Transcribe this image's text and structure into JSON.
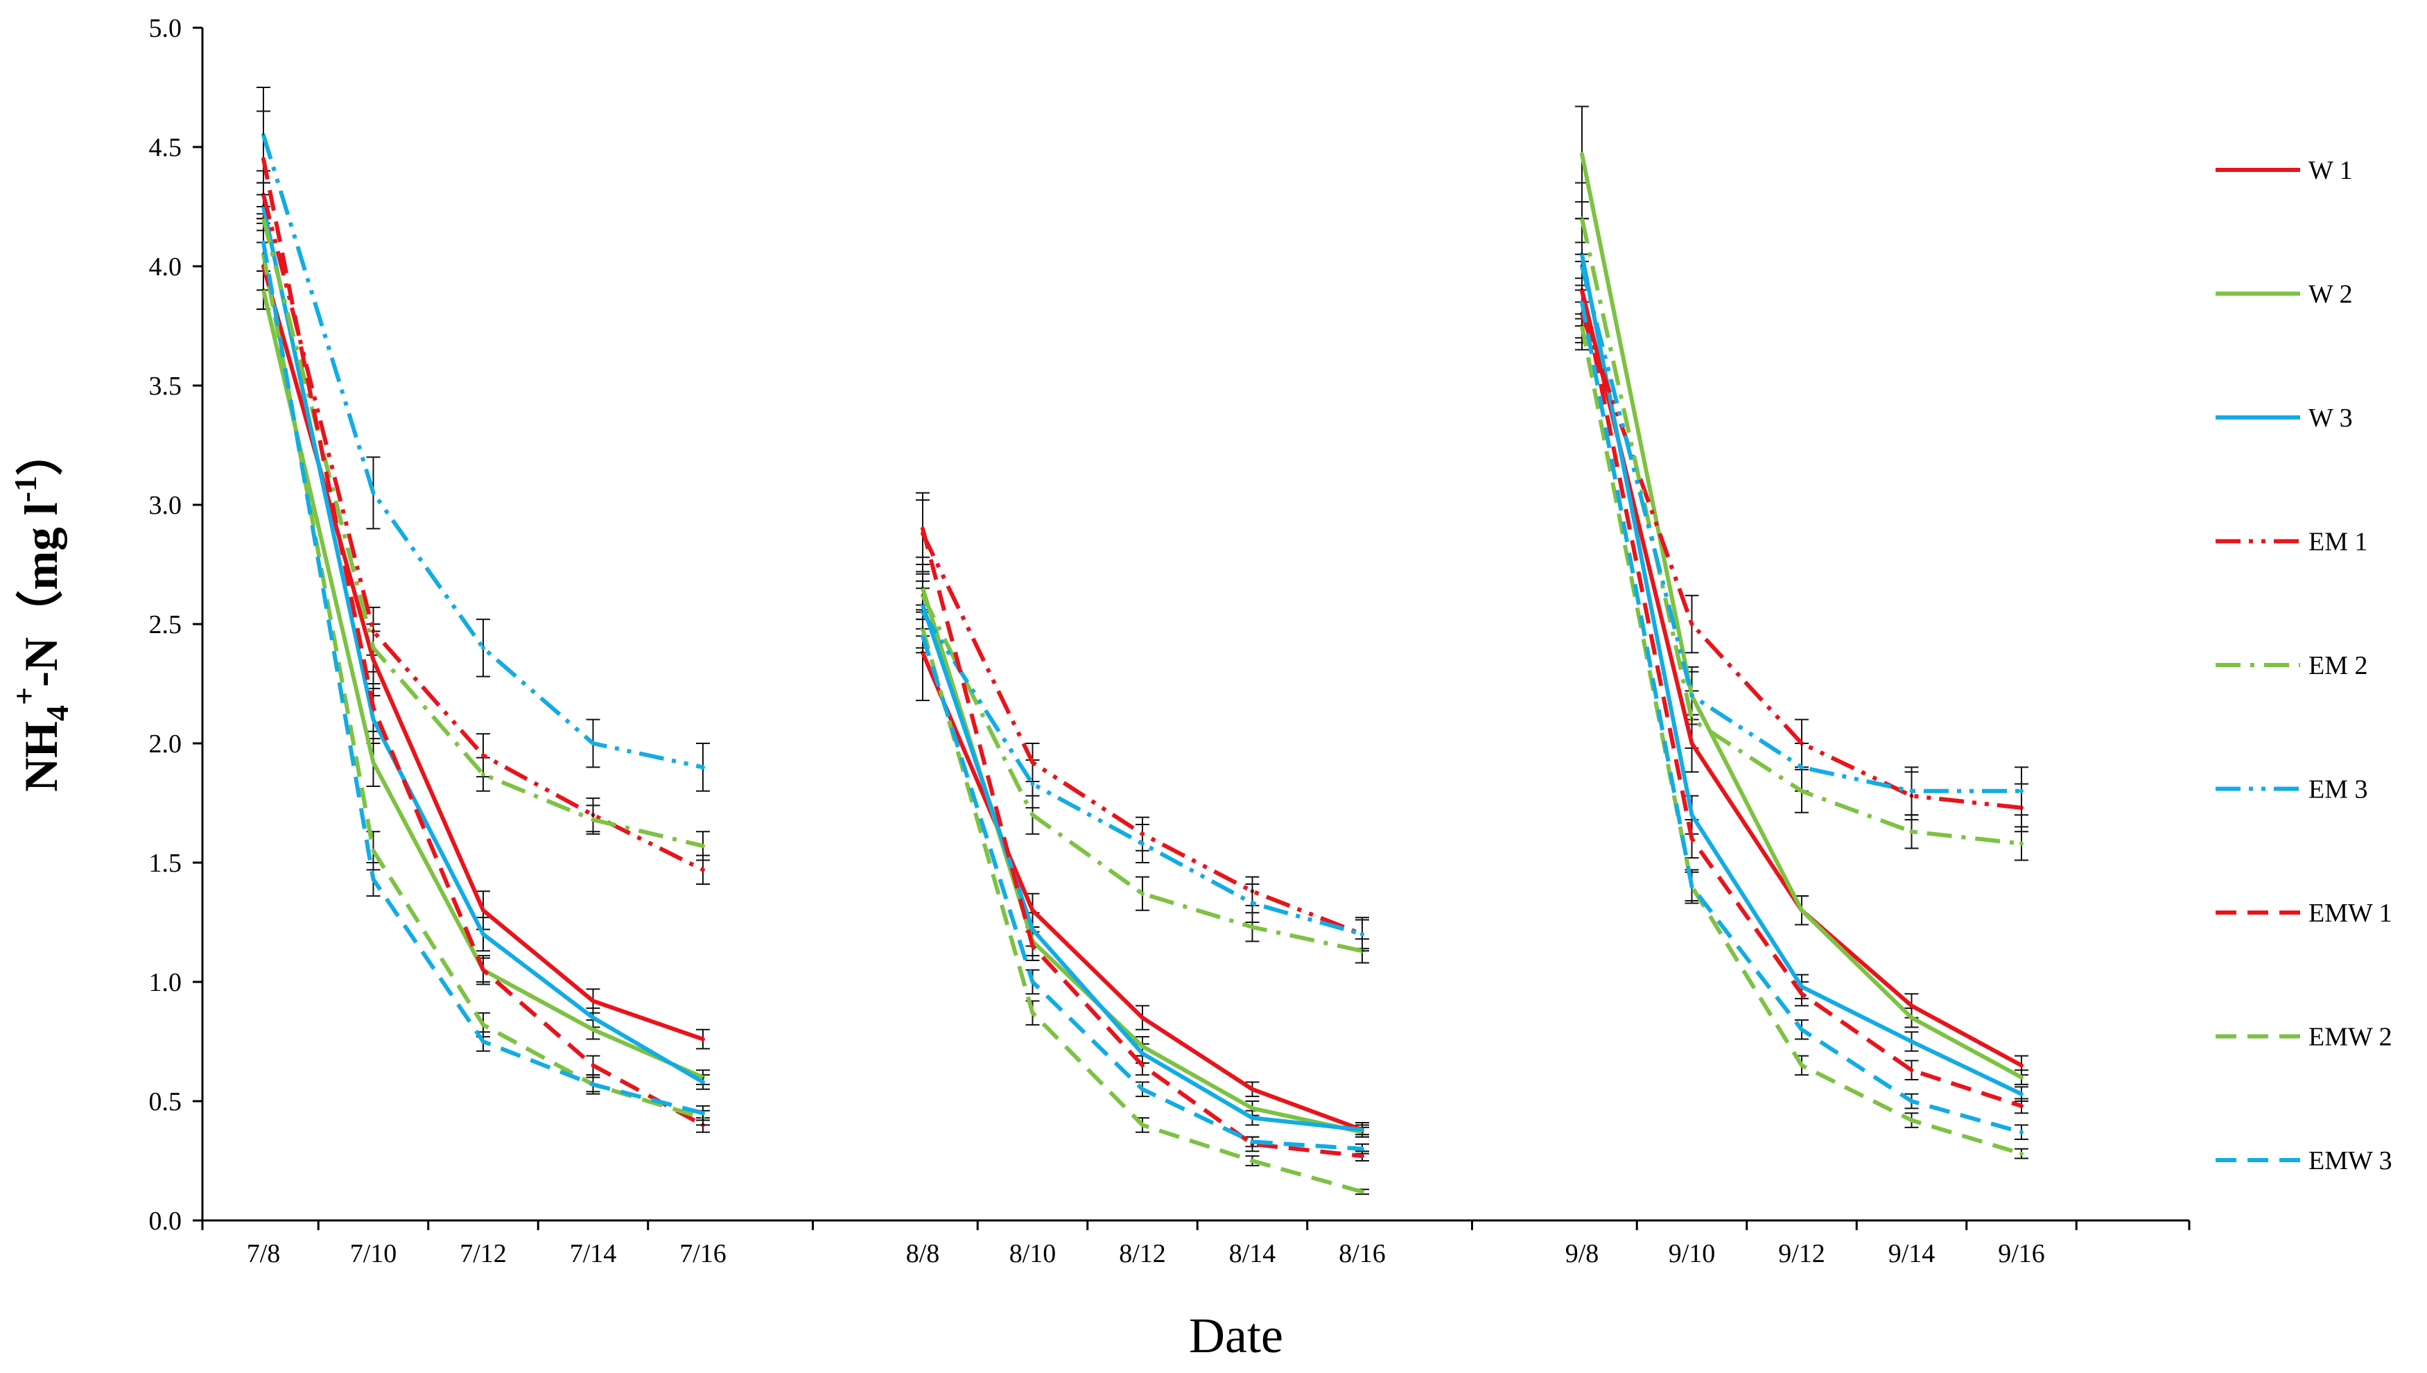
{
  "chart_data": {
    "type": "line",
    "title": "",
    "xlabel": "Date",
    "ylabel": {
      "prefix": "NH",
      "sub": "4",
      "sup": "+",
      "mid": "-N（mg l",
      "unit_sup": "-1",
      "suffix": "）"
    },
    "ylim": [
      0,
      5.0
    ],
    "yticks": [
      "0.0",
      "0.5",
      "1.0",
      "1.5",
      "2.0",
      "2.5",
      "3.0",
      "3.5",
      "4.0",
      "4.5",
      "5.0"
    ],
    "categories": [
      "7/8",
      "7/10",
      "7/12",
      "7/14",
      "7/16",
      "8/8",
      "8/10",
      "8/12",
      "8/14",
      "8/16",
      "9/8",
      "9/10",
      "9/12",
      "9/14",
      "9/16"
    ],
    "groups": [
      [
        0,
        1,
        2,
        3,
        4
      ],
      [
        5,
        6,
        7,
        8,
        9
      ],
      [
        10,
        11,
        12,
        13,
        14
      ]
    ],
    "series": [
      {
        "name": "W 1",
        "color": "#E8141C",
        "dash": "solid",
        "values": [
          4.0,
          2.35,
          1.3,
          0.92,
          0.76,
          2.38,
          1.3,
          0.85,
          0.55,
          0.38,
          3.9,
          2.0,
          1.3,
          0.9,
          0.65
        ],
        "errors": [
          0.18,
          0.12,
          0.08,
          0.05,
          0.04,
          0.2,
          0.07,
          0.05,
          0.03,
          0.03,
          0.2,
          0.12,
          0.06,
          0.05,
          0.04
        ]
      },
      {
        "name": "W 2",
        "color": "#7DC242",
        "dash": "solid",
        "values": [
          3.9,
          1.92,
          1.05,
          0.8,
          0.6,
          2.65,
          1.17,
          0.73,
          0.47,
          0.37,
          4.47,
          2.2,
          1.3,
          0.85,
          0.6
        ],
        "errors": [
          0.08,
          0.1,
          0.06,
          0.04,
          0.03,
          0.1,
          0.06,
          0.04,
          0.03,
          0.02,
          0.2,
          0.1,
          0.06,
          0.04,
          0.03
        ]
      },
      {
        "name": "W 3",
        "color": "#12ACE4",
        "dash": "solid",
        "values": [
          4.25,
          2.1,
          1.2,
          0.85,
          0.58,
          2.58,
          1.22,
          0.7,
          0.43,
          0.38,
          4.05,
          1.7,
          0.98,
          0.75,
          0.53
        ],
        "errors": [
          0.1,
          0.1,
          0.07,
          0.04,
          0.03,
          0.1,
          0.07,
          0.04,
          0.03,
          0.02,
          0.15,
          0.08,
          0.05,
          0.04,
          0.03
        ]
      },
      {
        "name": "EM 1",
        "color": "#E8141C",
        "dash": "dashdotdot",
        "values": [
          4.3,
          2.47,
          1.95,
          1.7,
          1.47,
          2.88,
          1.92,
          1.62,
          1.38,
          1.2,
          3.8,
          2.5,
          2.0,
          1.78,
          1.73
        ],
        "errors": [
          0.1,
          0.1,
          0.09,
          0.07,
          0.06,
          0.17,
          0.08,
          0.07,
          0.06,
          0.06,
          0.12,
          0.12,
          0.1,
          0.1,
          0.1
        ]
      },
      {
        "name": "EM 2",
        "color": "#7DC242",
        "dash": "dashdot",
        "values": [
          4.2,
          2.4,
          1.87,
          1.68,
          1.57,
          2.62,
          1.7,
          1.37,
          1.23,
          1.13,
          4.2,
          2.1,
          1.8,
          1.63,
          1.58
        ],
        "errors": [
          0.1,
          0.1,
          0.07,
          0.06,
          0.06,
          0.1,
          0.08,
          0.07,
          0.06,
          0.05,
          0.15,
          0.12,
          0.09,
          0.07,
          0.07
        ]
      },
      {
        "name": "EM 3",
        "color": "#12ACE4",
        "dash": "dashdotdot",
        "values": [
          4.55,
          3.05,
          2.4,
          2.0,
          1.9,
          2.55,
          1.83,
          1.58,
          1.33,
          1.2,
          4.0,
          2.2,
          1.9,
          1.8,
          1.8
        ],
        "errors": [
          0.2,
          0.15,
          0.12,
          0.1,
          0.1,
          0.1,
          0.1,
          0.08,
          0.08,
          0.07,
          0.2,
          0.12,
          0.1,
          0.1,
          0.1
        ]
      },
      {
        "name": "EMW 1",
        "color": "#E8141C",
        "dash": "dashed",
        "values": [
          4.45,
          2.15,
          1.05,
          0.65,
          0.4,
          2.9,
          1.15,
          0.65,
          0.32,
          0.27,
          3.9,
          1.6,
          0.95,
          0.63,
          0.48
        ],
        "errors": [
          0.2,
          0.1,
          0.05,
          0.04,
          0.03,
          0.12,
          0.06,
          0.04,
          0.03,
          0.02,
          0.12,
          0.08,
          0.05,
          0.04,
          0.03
        ]
      },
      {
        "name": "EMW 2",
        "color": "#7DC242",
        "dash": "dashed",
        "values": [
          4.05,
          1.55,
          0.82,
          0.57,
          0.43,
          2.48,
          0.87,
          0.4,
          0.25,
          0.12,
          3.75,
          1.4,
          0.65,
          0.42,
          0.28
        ],
        "errors": [
          0.15,
          0.08,
          0.05,
          0.04,
          0.03,
          0.08,
          0.05,
          0.03,
          0.02,
          0.01,
          0.1,
          0.07,
          0.04,
          0.03,
          0.02
        ]
      },
      {
        "name": "EMW 3",
        "color": "#12ACE4",
        "dash": "dashed",
        "values": [
          4.1,
          1.43,
          0.75,
          0.57,
          0.45,
          2.45,
          1.0,
          0.55,
          0.33,
          0.3,
          3.85,
          1.4,
          0.8,
          0.5,
          0.37
        ],
        "errors": [
          0.12,
          0.07,
          0.04,
          0.03,
          0.03,
          0.07,
          0.05,
          0.03,
          0.02,
          0.02,
          0.1,
          0.06,
          0.04,
          0.03,
          0.03
        ]
      }
    ]
  }
}
